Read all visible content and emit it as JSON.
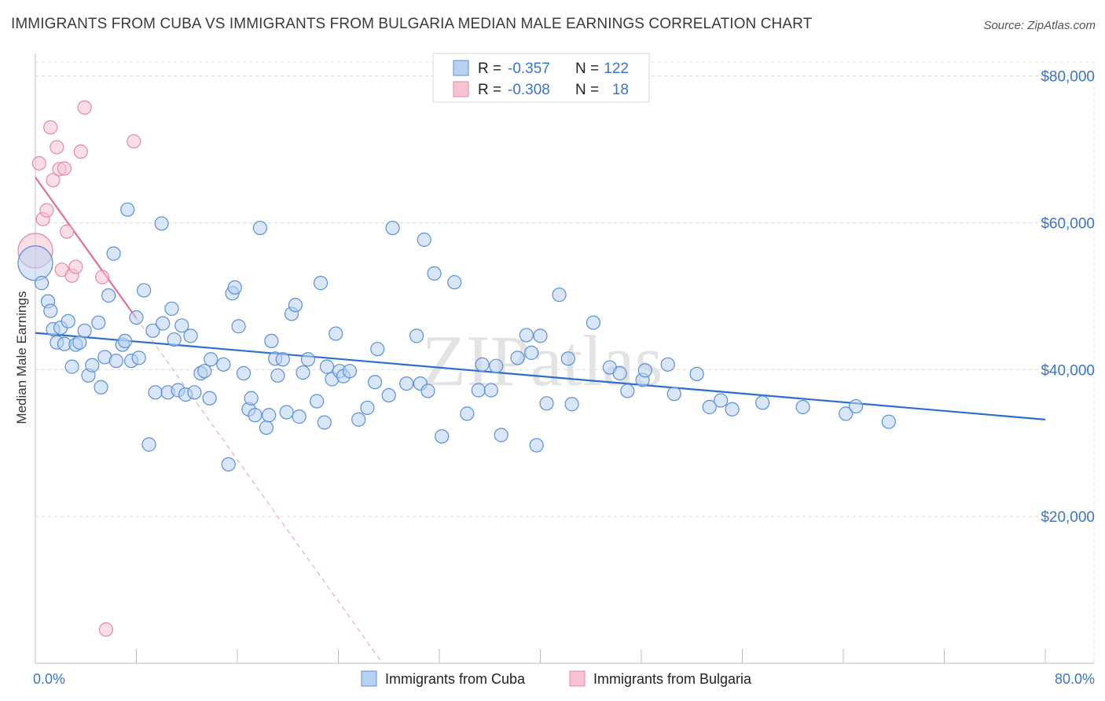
{
  "title": "IMMIGRANTS FROM CUBA VS IMMIGRANTS FROM BULGARIA MEDIAN MALE EARNINGS CORRELATION CHART",
  "source": "Source: ZipAtlas.com",
  "watermark": "ZIPatlas",
  "colors": {
    "cuba": "#5b8fd6",
    "cuba_fill": "#b9d1f2",
    "cuba_line": "#2a6fcf",
    "bulgaria": "#e58aa6",
    "bulgaria_fill": "#f6c3d2",
    "bulgaria_line": "#e0709a",
    "tick_text": "#3b74cc"
  },
  "stats_legend": [
    {
      "r_label": "R =",
      "r_value": "-0.357",
      "n_label": "N =",
      "n_value": "122"
    },
    {
      "r_label": "R =",
      "r_value": "-0.308",
      "n_label": "N =",
      "n_value": "18"
    }
  ],
  "chart_data": {
    "type": "scatter",
    "title": "IMMIGRANTS FROM CUBA VS IMMIGRANTS FROM BULGARIA MEDIAN MALE EARNINGS CORRELATION CHART",
    "xlabel": "",
    "ylabel": "Median Male Earnings",
    "xlim": [
      0,
      80
    ],
    "ylim": [
      0,
      82000
    ],
    "x_tick_labels": [
      "0.0%",
      "80.0%"
    ],
    "y_ticks": [
      20000,
      40000,
      60000,
      80000
    ],
    "y_tick_labels": [
      "$20,000",
      "$40,000",
      "$60,000",
      "$80,000"
    ],
    "grid": true,
    "legend_position": "bottom",
    "series": [
      {
        "name": "Immigrants from Cuba",
        "trend": {
          "x": [
            0,
            80
          ],
          "y": [
            45000,
            33200
          ]
        },
        "points": [
          [
            0,
            54500,
            "big"
          ],
          [
            0.5,
            51800
          ],
          [
            1,
            49300
          ],
          [
            1.2,
            48000
          ],
          [
            1.4,
            45500
          ],
          [
            1.7,
            43700
          ],
          [
            2,
            45700
          ],
          [
            2.3,
            43500
          ],
          [
            2.6,
            46600
          ],
          [
            2.9,
            40400
          ],
          [
            3.2,
            43400
          ],
          [
            3.5,
            43700
          ],
          [
            3.9,
            45300
          ],
          [
            4.2,
            39200
          ],
          [
            4.5,
            40600
          ],
          [
            5,
            46400
          ],
          [
            5.2,
            37600
          ],
          [
            5.5,
            41700
          ],
          [
            5.8,
            50100
          ],
          [
            6.2,
            55800
          ],
          [
            6.4,
            41200
          ],
          [
            6.9,
            43400
          ],
          [
            7.1,
            43900
          ],
          [
            7.3,
            61800
          ],
          [
            7.6,
            41200
          ],
          [
            8,
            47100
          ],
          [
            8.2,
            41600
          ],
          [
            8.6,
            50800
          ],
          [
            9,
            29800
          ],
          [
            9.3,
            45300
          ],
          [
            9.5,
            36900
          ],
          [
            10,
            59900
          ],
          [
            10.1,
            46300
          ],
          [
            10.5,
            36900
          ],
          [
            10.8,
            48300
          ],
          [
            11,
            44100
          ],
          [
            11.3,
            37200
          ],
          [
            11.6,
            46000
          ],
          [
            11.9,
            36600
          ],
          [
            12.3,
            44600
          ],
          [
            12.6,
            36900
          ],
          [
            13.1,
            39500
          ],
          [
            13.4,
            39800
          ],
          [
            13.8,
            36100
          ],
          [
            13.9,
            41400
          ],
          [
            14.9,
            40700
          ],
          [
            15.3,
            27100
          ],
          [
            15.6,
            50400
          ],
          [
            15.8,
            51200
          ],
          [
            16.1,
            45900
          ],
          [
            16.5,
            39500
          ],
          [
            16.9,
            34600
          ],
          [
            17.1,
            36100
          ],
          [
            17.4,
            33800
          ],
          [
            17.8,
            59300
          ],
          [
            18.3,
            32100
          ],
          [
            18.5,
            33800
          ],
          [
            18.7,
            43900
          ],
          [
            19,
            41500
          ],
          [
            19.2,
            39200
          ],
          [
            19.6,
            41400
          ],
          [
            19.9,
            34200
          ],
          [
            20.3,
            47600
          ],
          [
            20.6,
            48800
          ],
          [
            20.9,
            33600
          ],
          [
            21.2,
            39600
          ],
          [
            21.6,
            41400
          ],
          [
            22.3,
            35700
          ],
          [
            22.6,
            51800
          ],
          [
            22.9,
            32800
          ],
          [
            23.1,
            40400
          ],
          [
            23.5,
            38700
          ],
          [
            23.8,
            44900
          ],
          [
            24.1,
            39800
          ],
          [
            24.4,
            39100
          ],
          [
            24.9,
            39800
          ],
          [
            25.6,
            33200
          ],
          [
            26.3,
            34800
          ],
          [
            26.9,
            38300
          ],
          [
            27.1,
            42800
          ],
          [
            28,
            36500
          ],
          [
            28.3,
            59300
          ],
          [
            29.4,
            38100
          ],
          [
            30.2,
            44600
          ],
          [
            30.5,
            38100
          ],
          [
            30.8,
            57700
          ],
          [
            31.1,
            37100
          ],
          [
            31.6,
            53100
          ],
          [
            32.2,
            30900
          ],
          [
            33.2,
            51900
          ],
          [
            34.2,
            34000
          ],
          [
            35.1,
            37200
          ],
          [
            35.4,
            40700
          ],
          [
            36.1,
            37200
          ],
          [
            36.5,
            40500
          ],
          [
            36.9,
            31100
          ],
          [
            38.2,
            41600
          ],
          [
            38.9,
            44700
          ],
          [
            39.3,
            42300
          ],
          [
            39.7,
            29700
          ],
          [
            40,
            44600
          ],
          [
            40.5,
            35400
          ],
          [
            41.5,
            50200
          ],
          [
            42.2,
            41500
          ],
          [
            42.5,
            35300
          ],
          [
            44.2,
            46400
          ],
          [
            45.5,
            40300
          ],
          [
            46.3,
            39500
          ],
          [
            46.9,
            37100
          ],
          [
            48.1,
            38600
          ],
          [
            48.3,
            39900
          ],
          [
            50.1,
            40700
          ],
          [
            50.6,
            36700
          ],
          [
            52.4,
            39400
          ],
          [
            53.4,
            34900
          ],
          [
            54.3,
            35800
          ],
          [
            55.2,
            34600
          ],
          [
            57.6,
            35500
          ],
          [
            60.8,
            34900
          ],
          [
            64.2,
            34000
          ],
          [
            65,
            35000
          ],
          [
            67.6,
            32900
          ]
        ]
      },
      {
        "name": "Immigrants from Bulgaria",
        "trend": {
          "x": [
            0,
            8
          ],
          "y": [
            66200,
            47000
          ]
        },
        "trend_extension": {
          "x": [
            8,
            27.5
          ],
          "y": [
            47000,
            0
          ]
        },
        "points": [
          [
            0,
            56200,
            "big"
          ],
          [
            0.3,
            68100
          ],
          [
            0.6,
            60500
          ],
          [
            0.9,
            61700
          ],
          [
            1.2,
            73000
          ],
          [
            1.4,
            65800
          ],
          [
            1.7,
            70300
          ],
          [
            1.9,
            67300
          ],
          [
            2.1,
            53600
          ],
          [
            2.3,
            67400
          ],
          [
            2.5,
            58800
          ],
          [
            2.9,
            52800
          ],
          [
            3.2,
            54000
          ],
          [
            3.6,
            69700
          ],
          [
            3.9,
            75700
          ],
          [
            5.3,
            52600
          ],
          [
            5.6,
            4600
          ],
          [
            7.8,
            71100
          ]
        ]
      }
    ]
  },
  "bottom_legend": [
    {
      "label": "Immigrants from Cuba"
    },
    {
      "label": "Immigrants from Bulgaria"
    }
  ]
}
